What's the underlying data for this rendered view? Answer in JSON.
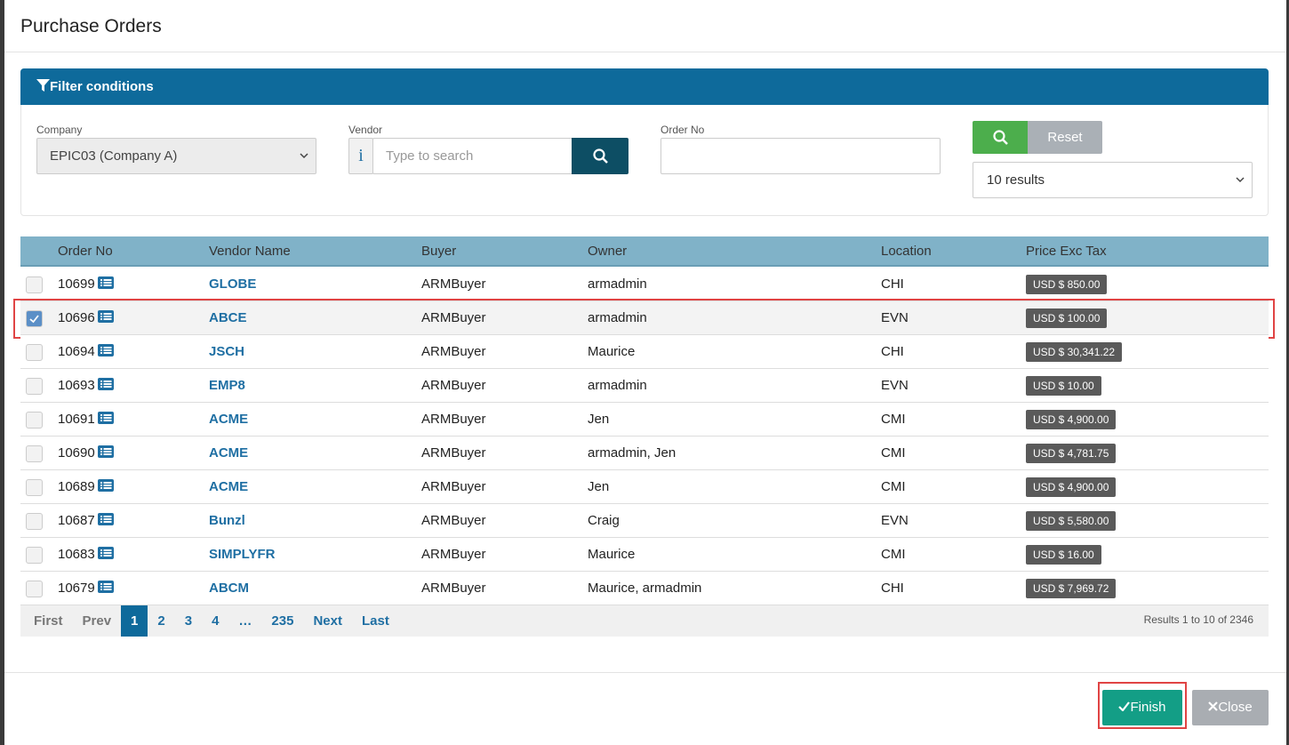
{
  "header": {
    "title": "Purchase Orders"
  },
  "filter": {
    "title": "Filter conditions",
    "company_label": "Company",
    "company_value": "EPIC03 (Company A)",
    "vendor_label": "Vendor",
    "vendor_info": "i",
    "vendor_placeholder": "Type to search",
    "order_label": "Order No",
    "reset": "Reset",
    "results_select": "10 results"
  },
  "table": {
    "columns": [
      "Order No",
      "Vendor Name",
      "Buyer",
      "Owner",
      "Location",
      "Price Exc Tax"
    ],
    "rows": [
      {
        "order_no": "10699",
        "vendor": "GLOBE",
        "buyer": "ARMBuyer",
        "owner": "armadmin",
        "location": "CHI",
        "price": "USD $ 850.00",
        "selected": false
      },
      {
        "order_no": "10696",
        "vendor": "ABCE",
        "buyer": "ARMBuyer",
        "owner": "armadmin",
        "location": "EVN",
        "price": "USD $ 100.00",
        "selected": true
      },
      {
        "order_no": "10694",
        "vendor": "JSCH",
        "buyer": "ARMBuyer",
        "owner": "Maurice",
        "location": "CHI",
        "price": "USD $ 30,341.22",
        "selected": false
      },
      {
        "order_no": "10693",
        "vendor": "EMP8",
        "buyer": "ARMBuyer",
        "owner": "armadmin",
        "location": "EVN",
        "price": "USD $ 10.00",
        "selected": false
      },
      {
        "order_no": "10691",
        "vendor": "ACME",
        "buyer": "ARMBuyer",
        "owner": "Jen",
        "location": "CMI",
        "price": "USD $ 4,900.00",
        "selected": false
      },
      {
        "order_no": "10690",
        "vendor": "ACME",
        "buyer": "ARMBuyer",
        "owner": "armadmin, Jen",
        "location": "CMI",
        "price": "USD $ 4,781.75",
        "selected": false
      },
      {
        "order_no": "10689",
        "vendor": "ACME",
        "buyer": "ARMBuyer",
        "owner": "Jen",
        "location": "CMI",
        "price": "USD $ 4,900.00",
        "selected": false
      },
      {
        "order_no": "10687",
        "vendor": "Bunzl",
        "buyer": "ARMBuyer",
        "owner": "Craig",
        "location": "EVN",
        "price": "USD $ 5,580.00",
        "selected": false
      },
      {
        "order_no": "10683",
        "vendor": "SIMPLYFR",
        "buyer": "ARMBuyer",
        "owner": "Maurice",
        "location": "CMI",
        "price": "USD $ 16.00",
        "selected": false
      },
      {
        "order_no": "10679",
        "vendor": "ABCM",
        "buyer": "ARMBuyer",
        "owner": "Maurice, armadmin",
        "location": "CHI",
        "price": "USD $ 7,969.72",
        "selected": false
      }
    ]
  },
  "pagination": {
    "pages": [
      {
        "label": "First",
        "active": false
      },
      {
        "label": "Prev",
        "active": false
      },
      {
        "label": "1",
        "active": true
      },
      {
        "label": "2",
        "active": false
      },
      {
        "label": "3",
        "active": false
      },
      {
        "label": "4",
        "active": false
      },
      {
        "label": "…",
        "active": false
      },
      {
        "label": "235",
        "active": false
      },
      {
        "label": "Next",
        "active": false
      },
      {
        "label": "Last",
        "active": false
      }
    ],
    "summary": "Results 1 to 10 of 2346"
  },
  "footer": {
    "finish": "Finish",
    "close": "Close"
  }
}
